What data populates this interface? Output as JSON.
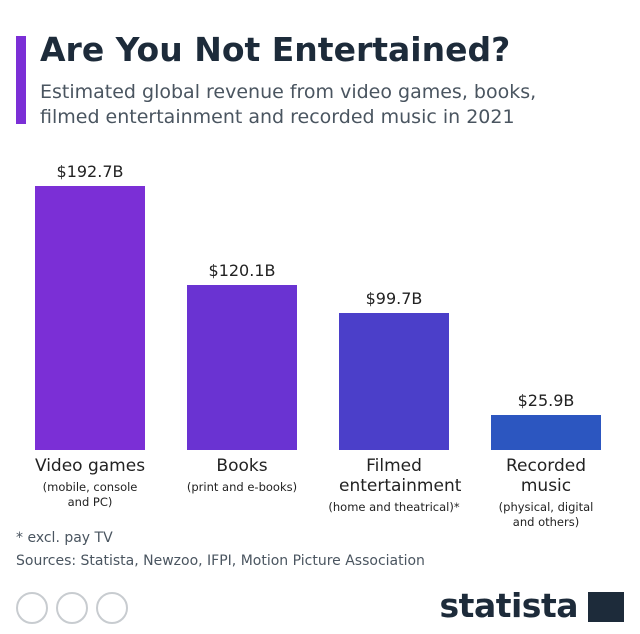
{
  "chart_data": {
    "type": "bar",
    "title": "Are You Not Entertained?",
    "subtitle": "Estimated global revenue from video games, books, filmed entertainment and recorded music in 2021",
    "categories": [
      "Video games",
      "Books",
      "Filmed entertainment",
      "Recorded music"
    ],
    "category_notes": [
      "(mobile, console and PC)",
      "(print and e-books)",
      "(home and theatrical)*",
      "(physical, digital and others)"
    ],
    "values": [
      192.7,
      120.1,
      99.7,
      25.9
    ],
    "value_labels": [
      "$192.7B",
      "$120.1B",
      "$99.7B",
      "$25.9B"
    ],
    "colors": [
      "#7b2fd6",
      "#6a33d2",
      "#4b3fc9",
      "#2c56c0"
    ],
    "ylim": [
      0,
      200
    ],
    "note": "* excl. pay TV",
    "source": "Sources: Statista, Newzoo, IFPI, Motion Picture Association",
    "brand": "statista"
  }
}
